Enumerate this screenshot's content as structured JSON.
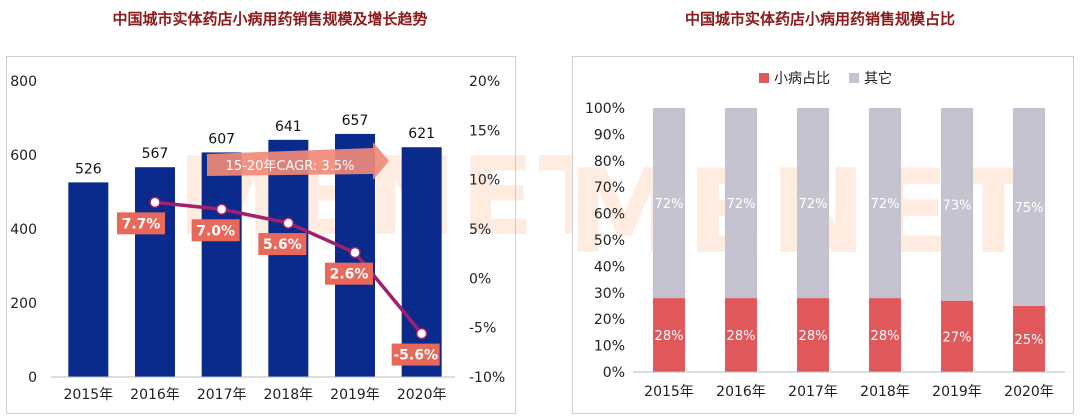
{
  "left_title": "中国城市实体药店小病用药销售规模及增长趋势",
  "right_title": "中国城市实体药店小病用药销售规模占比",
  "watermark": "MENET",
  "colors": {
    "bar": "#0A2A8C",
    "line": "#A0206E",
    "growth_label": "#E8685A",
    "share_small": "#E0585A",
    "share_other": "#C5C3CF",
    "arrow": "#F08A7A",
    "title": "#8B1A1A"
  },
  "chart_data": [
    {
      "type": "bar",
      "categories": [
        "2015年",
        "2016年",
        "2017年",
        "2018年",
        "2019年",
        "2020年"
      ],
      "values": [
        526,
        567,
        607,
        641,
        657,
        621
      ],
      "ylim": [
        0,
        800
      ],
      "yticks": [
        "0",
        "200",
        "400",
        "600",
        "800"
      ],
      "growth": {
        "type": "line",
        "x": [
          "2016年",
          "2017年",
          "2018年",
          "2019年",
          "2020年"
        ],
        "values": [
          7.7,
          7.0,
          5.6,
          2.6,
          -5.6
        ],
        "labels": [
          "7.7%",
          "7.0%",
          "5.6%",
          "2.6%",
          "-5.6%"
        ],
        "ylim": [
          -10,
          20
        ],
        "yticks": [
          "-10%",
          "-5%",
          "0%",
          "5%",
          "10%",
          "15%",
          "20%"
        ]
      },
      "annotation": "15-20年CAGR: 3.5%"
    },
    {
      "type": "bar",
      "stacked": true,
      "categories": [
        "2015年",
        "2016年",
        "2017年",
        "2018年",
        "2019年",
        "2020年"
      ],
      "series": [
        {
          "name": "小病占比",
          "values": [
            28,
            28,
            28,
            28,
            27,
            25
          ],
          "labels": [
            "28%",
            "28%",
            "28%",
            "28%",
            "27%",
            "25%"
          ]
        },
        {
          "name": "其它",
          "values": [
            72,
            72,
            72,
            72,
            73,
            75
          ],
          "labels": [
            "72%",
            "72%",
            "72%",
            "72%",
            "73%",
            "75%"
          ]
        }
      ],
      "ylim": [
        0,
        100
      ],
      "yticks": [
        "0%",
        "10%",
        "20%",
        "30%",
        "40%",
        "50%",
        "60%",
        "70%",
        "80%",
        "90%",
        "100%"
      ],
      "legend": "top"
    }
  ]
}
